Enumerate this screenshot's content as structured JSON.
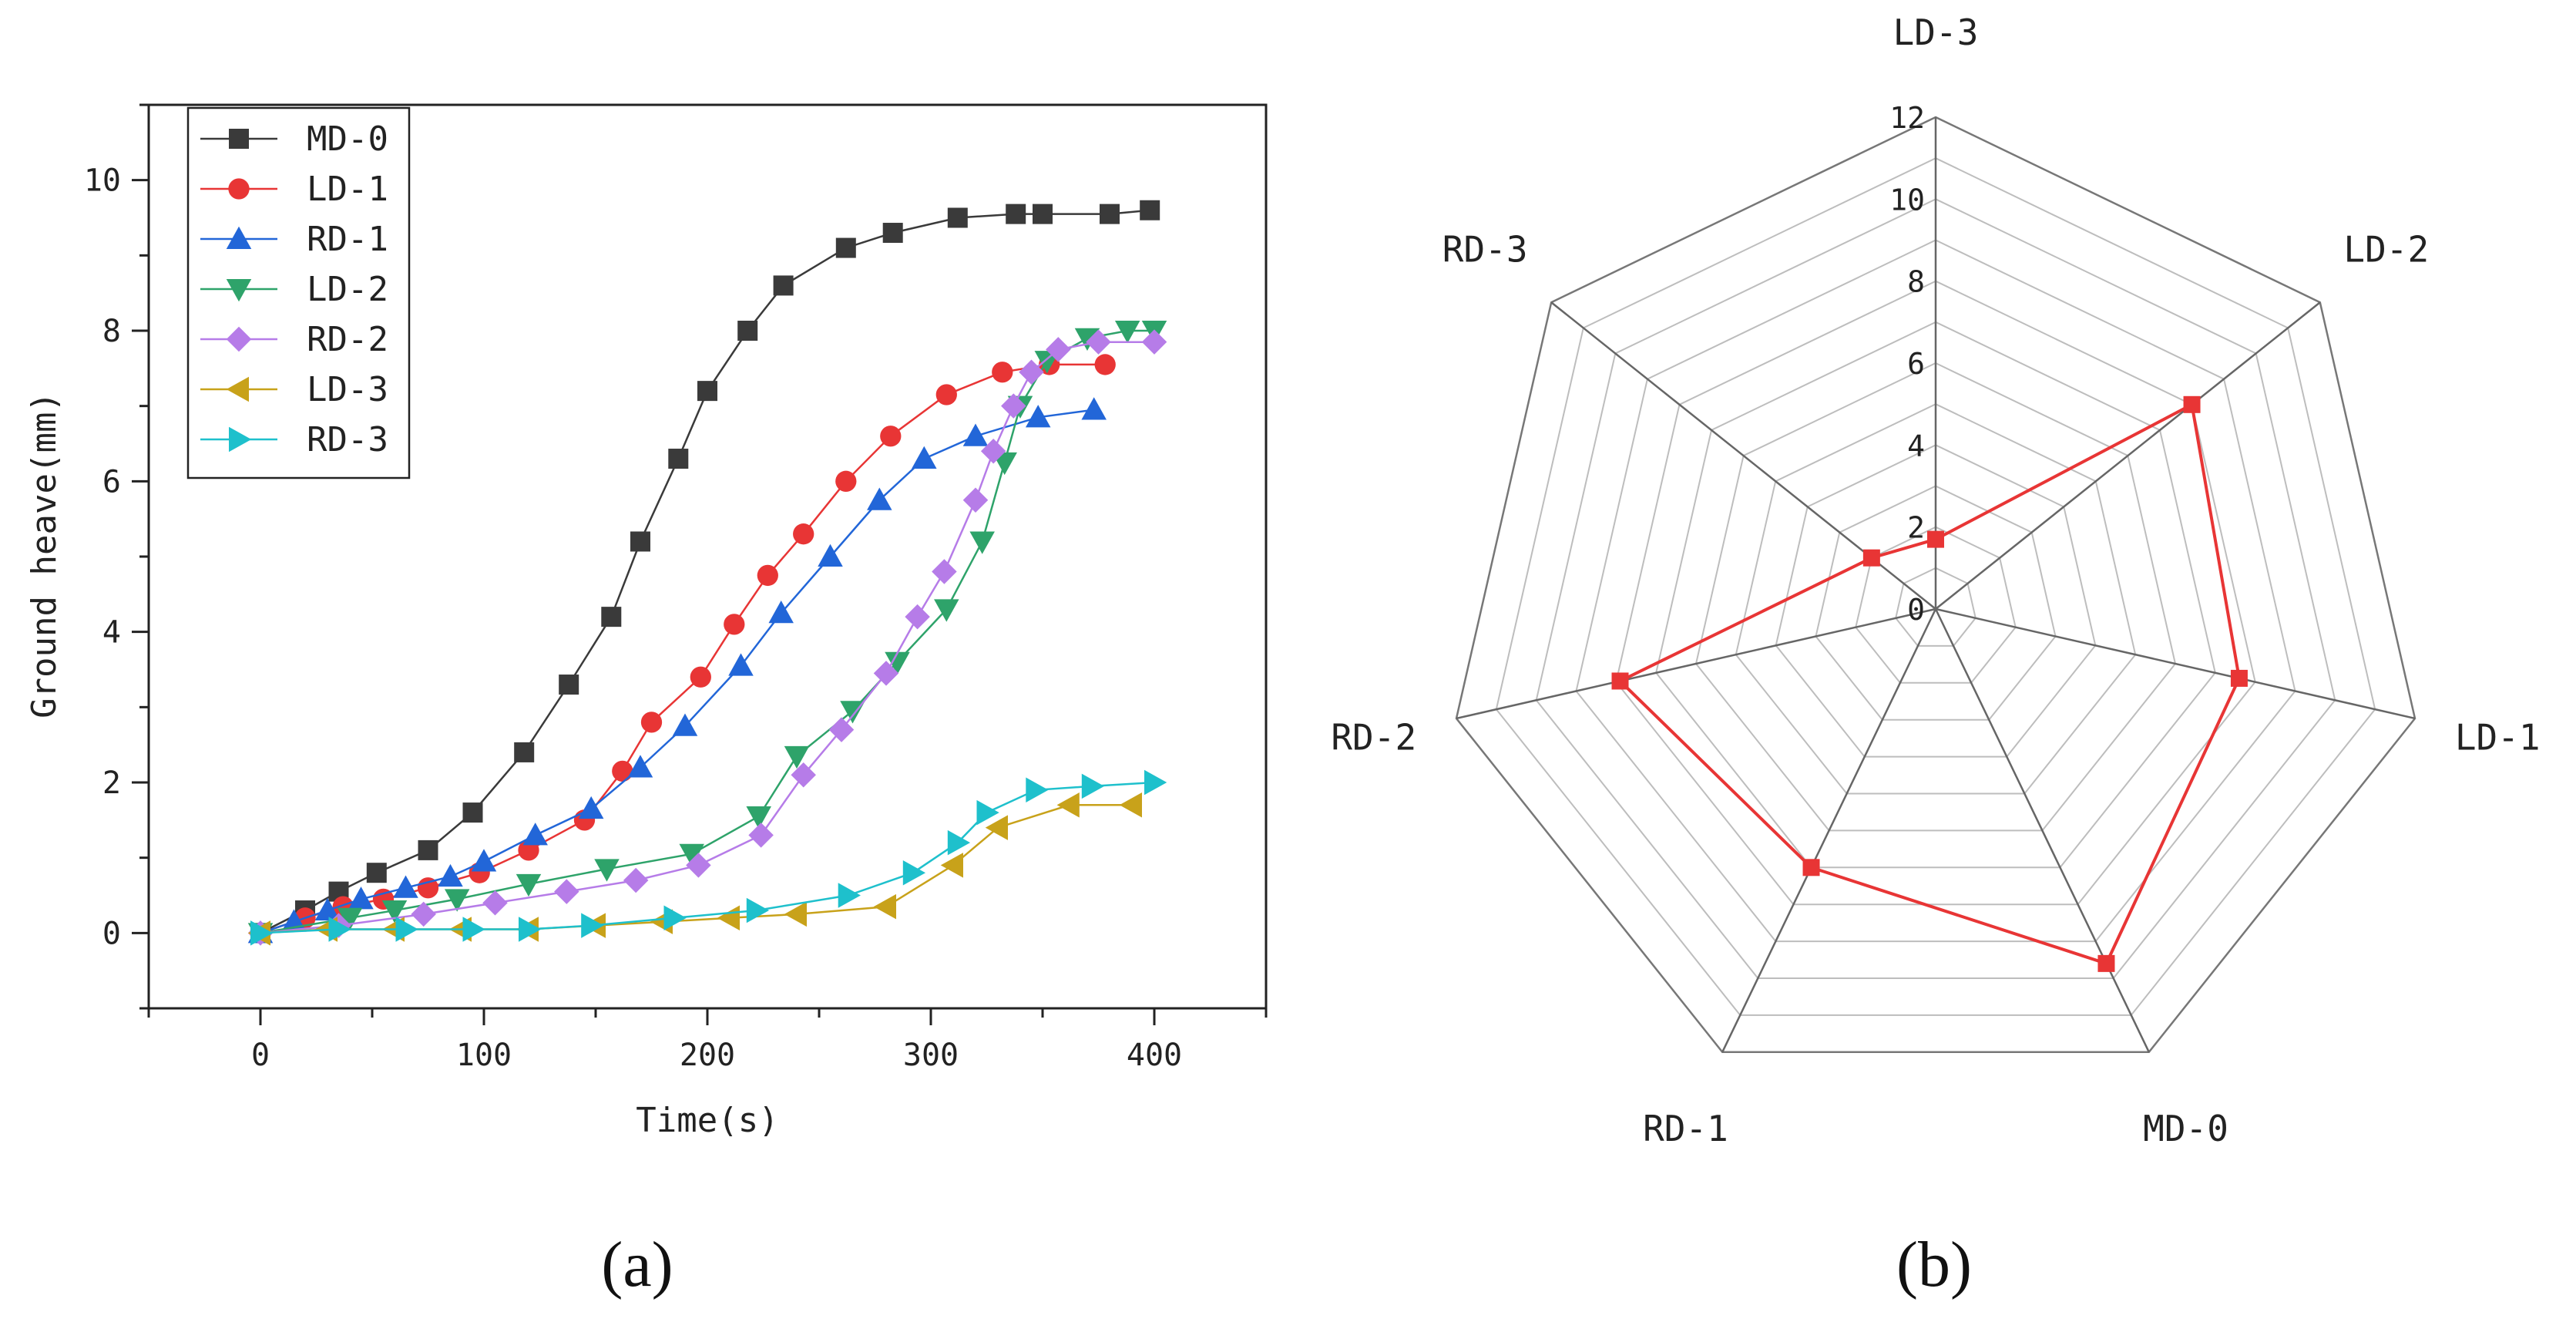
{
  "chart_data": [
    {
      "type": "line",
      "panel_label": "(a)",
      "xlabel": "Time(s)",
      "ylabel": "Ground heave(mm)",
      "xlim": [
        -50,
        450
      ],
      "ylim": [
        -1,
        11
      ],
      "xticks": [
        0,
        100,
        200,
        300,
        400
      ],
      "yticks": [
        0,
        2,
        4,
        6,
        8,
        10
      ],
      "legend_position": "top-left",
      "grid": false,
      "series": [
        {
          "name": "MD-0",
          "color": "#3a3a3a",
          "marker": "square",
          "x": [
            0,
            20,
            35,
            52,
            75,
            95,
            118,
            138,
            157,
            170,
            187,
            200,
            218,
            234,
            262,
            283,
            312,
            338,
            350,
            380,
            398
          ],
          "y": [
            0,
            0.3,
            0.55,
            0.8,
            1.1,
            1.6,
            2.4,
            3.3,
            4.2,
            5.2,
            6.3,
            7.2,
            8.0,
            8.6,
            9.1,
            9.3,
            9.5,
            9.55,
            9.55,
            9.55,
            9.6
          ]
        },
        {
          "name": "LD-1",
          "color": "#e83535",
          "marker": "circle",
          "x": [
            0,
            20,
            37,
            55,
            75,
            98,
            120,
            145,
            162,
            175,
            197,
            212,
            227,
            243,
            262,
            282,
            307,
            332,
            353,
            378
          ],
          "y": [
            0,
            0.2,
            0.35,
            0.45,
            0.6,
            0.8,
            1.1,
            1.5,
            2.15,
            2.8,
            3.4,
            4.1,
            4.75,
            5.3,
            6.0,
            6.6,
            7.15,
            7.45,
            7.55,
            7.55
          ]
        },
        {
          "name": "RD-1",
          "color": "#2266d8",
          "marker": "triangle-up",
          "x": [
            0,
            15,
            30,
            45,
            65,
            85,
            100,
            123,
            148,
            170,
            190,
            215,
            233,
            255,
            277,
            297,
            320,
            348,
            373
          ],
          "y": [
            0,
            0.15,
            0.3,
            0.45,
            0.6,
            0.75,
            0.95,
            1.3,
            1.65,
            2.2,
            2.75,
            3.55,
            4.25,
            5.0,
            5.75,
            6.3,
            6.6,
            6.85,
            6.95
          ]
        },
        {
          "name": "LD-2",
          "color": "#2ea36a",
          "marker": "triangle-down",
          "x": [
            0,
            40,
            60,
            88,
            120,
            155,
            193,
            223,
            240,
            265,
            285,
            307,
            323,
            333,
            340,
            352,
            370,
            388,
            400
          ],
          "y": [
            0,
            0.2,
            0.3,
            0.45,
            0.65,
            0.85,
            1.05,
            1.55,
            2.35,
            2.95,
            3.6,
            4.3,
            5.2,
            6.25,
            7.0,
            7.6,
            7.9,
            8.0,
            8.0
          ]
        },
        {
          "name": "RD-2",
          "color": "#b67ce8",
          "marker": "diamond",
          "x": [
            0,
            35,
            73,
            105,
            137,
            168,
            196,
            224,
            243,
            260,
            280,
            294,
            306,
            320,
            328,
            337,
            345,
            357,
            375,
            400
          ],
          "y": [
            0,
            0.1,
            0.25,
            0.4,
            0.55,
            0.7,
            0.9,
            1.3,
            2.1,
            2.7,
            3.45,
            4.2,
            4.8,
            5.75,
            6.4,
            7.0,
            7.45,
            7.75,
            7.85,
            7.85
          ]
        },
        {
          "name": "LD-3",
          "color": "#c8a21a",
          "marker": "triangle-left",
          "x": [
            0,
            30,
            60,
            90,
            120,
            150,
            180,
            210,
            240,
            280,
            310,
            330,
            362,
            390
          ],
          "y": [
            0,
            0.05,
            0.05,
            0.05,
            0.05,
            0.1,
            0.15,
            0.2,
            0.25,
            0.35,
            0.9,
            1.4,
            1.7,
            1.7
          ]
        },
        {
          "name": "RD-3",
          "color": "#1ec0cc",
          "marker": "triangle-right",
          "x": [
            0,
            35,
            65,
            95,
            120,
            148,
            185,
            222,
            263,
            292,
            312,
            325,
            347,
            372,
            400
          ],
          "y": [
            0,
            0.05,
            0.05,
            0.05,
            0.05,
            0.1,
            0.2,
            0.3,
            0.5,
            0.8,
            1.2,
            1.6,
            1.9,
            1.95,
            2.0
          ]
        }
      ]
    },
    {
      "type": "radar",
      "panel_label": "(b)",
      "axes": [
        "LD-3",
        "LD-2",
        "LD-1",
        "MD-0",
        "RD-1",
        "RD-2",
        "RD-3"
      ],
      "rlim": [
        0,
        12
      ],
      "rticks": [
        0,
        2,
        4,
        6,
        8,
        10,
        12
      ],
      "series": [
        {
          "color": "#e83535",
          "marker": "square",
          "values": [
            1.7,
            8.0,
            7.6,
            9.6,
            7.0,
            7.9,
            2.0
          ]
        }
      ]
    }
  ]
}
